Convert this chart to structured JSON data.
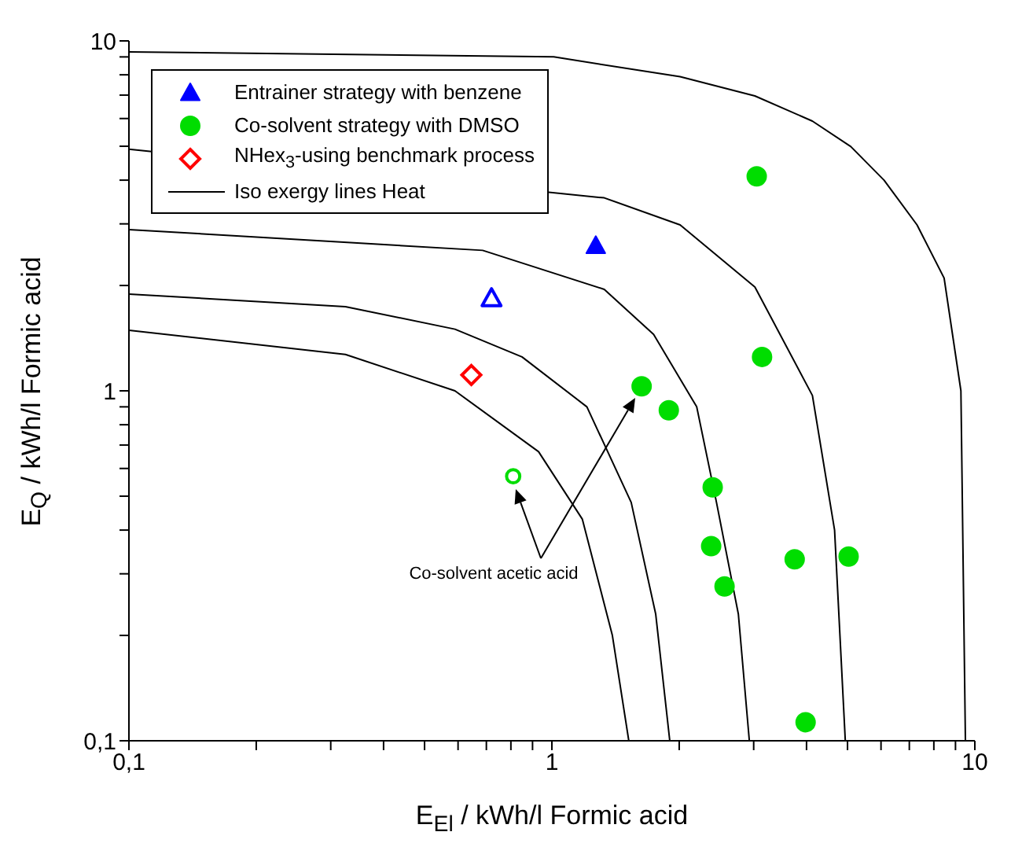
{
  "chart_data": {
    "type": "scatter",
    "xlabel": "E$_{El}$ / kWh/l Formic acid",
    "ylabel": "E$_{Q}$ / kWh/l Formic acid",
    "log": "xy",
    "grid": false,
    "legend": "top left",
    "xlim": [
      0.1,
      10
    ],
    "ylim": [
      0.1,
      10
    ],
    "xticks": [
      {
        "value": 0.1,
        "label": "0,1"
      },
      {
        "value": 0.2,
        "label": null
      },
      {
        "value": 0.3,
        "label": null
      },
      {
        "value": 0.4,
        "label": null
      },
      {
        "value": 0.5,
        "label": null
      },
      {
        "value": 0.6,
        "label": null
      },
      {
        "value": 0.7,
        "label": null
      },
      {
        "value": 0.8,
        "label": null
      },
      {
        "value": 0.9,
        "label": null
      },
      1,
      {
        "value": 2,
        "label": null
      },
      {
        "value": 3,
        "label": null
      },
      {
        "value": 4,
        "label": null
      },
      {
        "value": 5,
        "label": null
      },
      {
        "value": 6,
        "label": null
      },
      {
        "value": 7,
        "label": null
      },
      {
        "value": 8,
        "label": null
      },
      {
        "value": 9,
        "label": null
      },
      10
    ],
    "yticks": [
      {
        "value": 0.1,
        "label": "0,1"
      },
      {
        "value": 0.2,
        "label": null
      },
      {
        "value": 0.3,
        "label": null
      },
      {
        "value": 0.4,
        "label": null
      },
      {
        "value": 0.5,
        "label": null
      },
      {
        "value": 0.6,
        "label": null
      },
      {
        "value": 0.7,
        "label": null
      },
      {
        "value": 0.8,
        "label": null
      },
      {
        "value": 0.9,
        "label": null
      },
      1,
      {
        "value": 2,
        "label": null
      },
      {
        "value": 3,
        "label": null
      },
      {
        "value": 4,
        "label": null
      },
      {
        "value": 5,
        "label": null
      },
      {
        "value": 6,
        "label": null
      },
      {
        "value": 7,
        "label": null
      },
      {
        "value": 8,
        "label": null
      },
      {
        "value": 9,
        "label": null
      },
      10
    ],
    "annotations": [
      "Co-solvent acetic acid"
    ],
    "series": [
      {
        "name": "Entrainer strategy with benzene",
        "color": "#0000ff",
        "marker": "triangle",
        "x": [
          1.27
        ],
        "values": [
          2.6
        ]
      },
      {
        "color": "#0000ff",
        "marker": "triangle-open",
        "x": [
          0.72
        ],
        "values": [
          1.84
        ]
      },
      {
        "name": "Co-solvent strategy with DMSO",
        "color": "#00dd00",
        "marker": "circle",
        "x": [
          3.05,
          3.14,
          1.63,
          1.89,
          2.4,
          2.38,
          2.56,
          3.75,
          5.03,
          3.98
        ],
        "values": [
          4.1,
          1.25,
          1.03,
          0.88,
          0.53,
          0.36,
          0.276,
          0.33,
          0.336,
          0.113
        ]
      },
      {
        "color": "#00dd00",
        "marker": "circle-open",
        "x": [
          0.81
        ],
        "values": [
          0.57
        ]
      },
      {
        "name": "NHex$_{3}$-using benchmark process",
        "color": "#ff0000",
        "marker": "diamond-open",
        "x": [
          0.645
        ],
        "values": [
          1.11
        ]
      },
      {
        "type": "line",
        "name": "Iso exergy lines Heat",
        "color": "#000000",
        "x": [
          0.1,
          1.01,
          2.01,
          3.02,
          4.13,
          5.09,
          6.1,
          7.3,
          8.46,
          9.27,
          9.5
        ],
        "values": [
          9.3,
          9.0,
          7.9,
          6.96,
          5.9,
          4.99,
          4.0,
          2.98,
          2.1,
          1.0,
          0.1
        ]
      },
      {
        "type": "line",
        "color": "#000000",
        "x": [
          0.1,
          1.33,
          2.01,
          3.02,
          4.13,
          4.66,
          4.94
        ],
        "values": [
          4.9,
          3.56,
          2.98,
          1.98,
          0.97,
          0.4,
          0.1
        ]
      },
      {
        "type": "line",
        "color": "#000000",
        "x": [
          0.1,
          0.686,
          1.33,
          1.74,
          2.2,
          2.45,
          2.76,
          2.93
        ],
        "values": [
          2.89,
          2.52,
          1.95,
          1.45,
          0.9,
          0.48,
          0.23,
          0.1
        ]
      },
      {
        "type": "line",
        "color": "#000000",
        "x": [
          0.1,
          0.325,
          0.59,
          0.85,
          1.21,
          1.54,
          1.76,
          1.9
        ],
        "values": [
          1.89,
          1.74,
          1.5,
          1.25,
          0.9,
          0.48,
          0.23,
          0.1
        ]
      },
      {
        "type": "line",
        "color": "#000000",
        "x": [
          0.1,
          0.325,
          0.59,
          0.93,
          1.18,
          1.39,
          1.52
        ],
        "values": [
          1.49,
          1.27,
          1.0,
          0.67,
          0.43,
          0.2,
          0.1
        ]
      }
    ]
  }
}
